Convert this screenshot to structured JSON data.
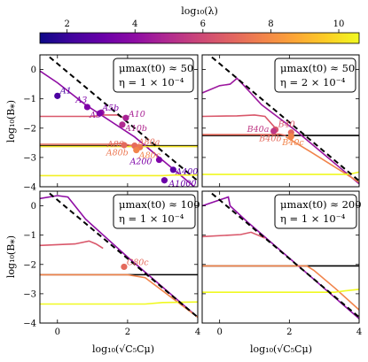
{
  "chart_data": {
    "type": "line",
    "colorbar": {
      "label": "log₁₀(λ)",
      "range": [
        1.2,
        10.6
      ],
      "ticks": [
        "2",
        "4",
        "6",
        "8",
        "10"
      ],
      "tick_values": [
        2,
        4,
        6,
        8,
        10
      ],
      "colormap": "plasma"
    },
    "shared_axes": {
      "xlabel": "log₁₀(√C₅Cμ)",
      "ylabel": "log₁₀(B⁎)",
      "xlim": [
        -0.5,
        4
      ],
      "ylim": [
        -4,
        0.5
      ],
      "xticks": [
        0,
        2,
        4
      ],
      "yticks": [
        0,
        -1,
        -2,
        -3,
        -4
      ]
    },
    "panels": [
      {
        "annotation_lines": [
          "μmax(t0) ≈ 50",
          "η = 1 × 10⁻⁴"
        ],
        "boundary_line": {
          "intercept": 0.2,
          "slope": -1
        },
        "horizontal_lines": [
          {
            "y": -2.6,
            "color": "#000000"
          }
        ],
        "series": [
          {
            "color": "#8f0da4",
            "points": [
              [
                -0.5,
                -0.05
              ],
              [
                0.0,
                -0.45
              ],
              [
                0.8,
                -1.2
              ],
              [
                2.2,
                -2.3
              ],
              [
                3.2,
                -3.3
              ],
              [
                4.0,
                -4.1
              ]
            ]
          },
          {
            "color": "#d9576a",
            "points": [
              [
                -0.5,
                -1.6
              ],
              [
                0.5,
                -1.6
              ],
              [
                1.0,
                -1.6
              ],
              [
                1.3,
                -1.55
              ],
              [
                1.7,
                -1.55
              ],
              [
                1.9,
                -1.65
              ]
            ]
          },
          {
            "color": "#e46a5c",
            "points": [
              [
                -0.5,
                -2.55
              ],
              [
                1.5,
                -2.55
              ],
              [
                1.85,
                -2.52
              ],
              [
                2.05,
                -2.58
              ],
              [
                2.2,
                -2.6
              ]
            ]
          },
          {
            "color": "#f0e126",
            "points": [
              [
                -0.5,
                -2.63
              ],
              [
                4.0,
                -2.63
              ]
            ]
          },
          {
            "color": "#f3f024",
            "points": [
              [
                -0.5,
                -3.62
              ],
              [
                3.0,
                -3.62
              ],
              [
                3.3,
                -3.6
              ],
              [
                4.0,
                -3.6
              ]
            ]
          }
        ],
        "markers": [
          {
            "x": 0.0,
            "y": -0.9,
            "color": "#4c02a1",
            "label": "A1"
          },
          {
            "x": 0.85,
            "y": -1.28,
            "color": "#7e03a8",
            "label": "A3"
          },
          {
            "x": 1.25,
            "y": -1.47,
            "color": "#9c179e",
            "label": "A5"
          },
          {
            "x": 1.2,
            "y": -1.5,
            "color": "#7e03a8",
            "label": "A5b"
          },
          {
            "x": 1.95,
            "y": -1.65,
            "color": "#a92395",
            "label": "A10"
          },
          {
            "x": 1.85,
            "y": -1.88,
            "color": "#b12a90",
            "label": "A10b"
          },
          {
            "x": 1.9,
            "y": -2.58,
            "color": "#e46a5c",
            "label": "A80"
          },
          {
            "x": 2.2,
            "y": -2.6,
            "color": "#e66c5c",
            "label": "A80a"
          },
          {
            "x": 2.35,
            "y": -2.65,
            "color": "#ec7853",
            "label": "A80b"
          },
          {
            "x": 2.25,
            "y": -2.75,
            "color": "#f1844b",
            "label": "A80c"
          },
          {
            "x": 2.9,
            "y": -3.08,
            "color": "#7e03a8",
            "label": "A200"
          },
          {
            "x": 3.3,
            "y": -3.42,
            "color": "#5c01a6",
            "label": "A400"
          },
          {
            "x": 3.05,
            "y": -3.78,
            "color": "#6a00a8",
            "label": "A1000"
          }
        ]
      },
      {
        "annotation_lines": [
          "μmax(t0) ≈ 50",
          "η = 2 × 10⁻⁴"
        ],
        "boundary_line": {
          "intercept": 0.2,
          "slope": -1
        },
        "horizontal_lines": [
          {
            "y": -2.25,
            "color": "#000000"
          }
        ],
        "series": [
          {
            "color": "#9c179e",
            "points": [
              [
                -0.5,
                -0.8
              ],
              [
                0.0,
                -0.55
              ],
              [
                0.3,
                -0.5
              ],
              [
                0.5,
                -0.3
              ],
              [
                0.7,
                -0.55
              ],
              [
                1.2,
                -1.2
              ],
              [
                2.2,
                -2.1
              ],
              [
                4.0,
                -3.9
              ]
            ]
          },
          {
            "color": "#d9576a",
            "points": [
              [
                -0.5,
                -1.6
              ],
              [
                0.5,
                -1.58
              ],
              [
                1.0,
                -1.55
              ],
              [
                1.3,
                -1.6
              ],
              [
                1.6,
                -2.0
              ]
            ]
          },
          {
            "color": "#e46a5c",
            "points": [
              [
                -0.5,
                -2.22
              ],
              [
                1.5,
                -2.22
              ],
              [
                1.7,
                -2.2
              ],
              [
                1.9,
                -2.25
              ]
            ]
          },
          {
            "color": "#f1844b",
            "points": [
              [
                1.9,
                -2.3
              ],
              [
                2.6,
                -2.8
              ],
              [
                3.4,
                -3.4
              ],
              [
                4.0,
                -3.85
              ]
            ]
          },
          {
            "color": "#f0f921",
            "points": [
              [
                -0.5,
                -3.58
              ],
              [
                3.6,
                -3.58
              ],
              [
                3.8,
                -3.55
              ],
              [
                4.0,
                -3.5
              ]
            ]
          }
        ],
        "markers": [
          {
            "x": 1.6,
            "y": -2.05,
            "color": "#d9576a",
            "label": "B40"
          },
          {
            "x": 1.55,
            "y": -2.1,
            "color": "#bf3984",
            "label": "B40a"
          },
          {
            "x": 2.05,
            "y": -2.15,
            "color": "#e46a5c",
            "label": "B40b"
          },
          {
            "x": 2.05,
            "y": -2.28,
            "color": "#f1844b",
            "label": "B40c"
          }
        ]
      },
      {
        "annotation_lines": [
          "μmax(t0) ≈ 100",
          "η = 1 × 10⁻⁴"
        ],
        "boundary_line": {
          "intercept": 0.2,
          "slope": -1
        },
        "horizontal_lines": [
          {
            "y": -2.35,
            "color": "#000000"
          }
        ],
        "series": [
          {
            "color": "#8f0da4",
            "points": [
              [
                -0.5,
                0.25
              ],
              [
                0.0,
                0.35
              ],
              [
                0.3,
                0.3
              ],
              [
                0.8,
                -0.45
              ],
              [
                2.0,
                -1.75
              ],
              [
                4.0,
                -3.8
              ]
            ]
          },
          {
            "color": "#d9576a",
            "points": [
              [
                -0.5,
                -1.35
              ],
              [
                0.5,
                -1.3
              ],
              [
                0.9,
                -1.2
              ],
              [
                1.1,
                -1.3
              ],
              [
                1.3,
                -1.45
              ]
            ]
          },
          {
            "color": "#f1844b",
            "points": [
              [
                -0.5,
                -2.35
              ],
              [
                2.0,
                -2.35
              ],
              [
                2.5,
                -2.45
              ],
              [
                3.5,
                -3.35
              ],
              [
                4.0,
                -3.8
              ]
            ]
          },
          {
            "color": "#f0f921",
            "points": [
              [
                -0.5,
                -3.35
              ],
              [
                2.5,
                -3.35
              ],
              [
                3.0,
                -3.3
              ],
              [
                4.0,
                -3.28
              ]
            ]
          }
        ],
        "markers": [
          {
            "x": 1.9,
            "y": -2.08,
            "color": "#e46a5c",
            "label": "C80c"
          }
        ]
      },
      {
        "annotation_lines": [
          "μmax(t0) ≈ 200",
          "η = 1 × 10⁻⁴"
        ],
        "boundary_line": {
          "intercept": 0.2,
          "slope": -1
        },
        "horizontal_lines": [
          {
            "y": -2.05,
            "color": "#000000"
          }
        ],
        "series": [
          {
            "color": "#8f0da4",
            "points": [
              [
                -0.5,
                0.0
              ],
              [
                0.0,
                0.2
              ],
              [
                0.25,
                0.3
              ],
              [
                0.3,
                0.0
              ],
              [
                0.8,
                -0.55
              ],
              [
                2.5,
                -2.3
              ],
              [
                4.0,
                -3.85
              ]
            ]
          },
          {
            "color": "#d9576a",
            "points": [
              [
                -0.5,
                -1.05
              ],
              [
                0.6,
                -0.98
              ],
              [
                0.9,
                -0.9
              ],
              [
                1.1,
                -1.0
              ],
              [
                1.3,
                -1.1
              ]
            ]
          },
          {
            "color": "#f1844b",
            "points": [
              [
                -0.5,
                -2.05
              ],
              [
                2.5,
                -2.05
              ],
              [
                2.7,
                -2.2
              ],
              [
                3.3,
                -2.8
              ],
              [
                4.0,
                -3.55
              ]
            ]
          },
          {
            "color": "#f0f921",
            "points": [
              [
                -0.5,
                -2.95
              ],
              [
                3.3,
                -2.95
              ],
              [
                3.6,
                -2.9
              ],
              [
                4.0,
                -2.85
              ]
            ]
          }
        ],
        "markers": []
      }
    ]
  }
}
